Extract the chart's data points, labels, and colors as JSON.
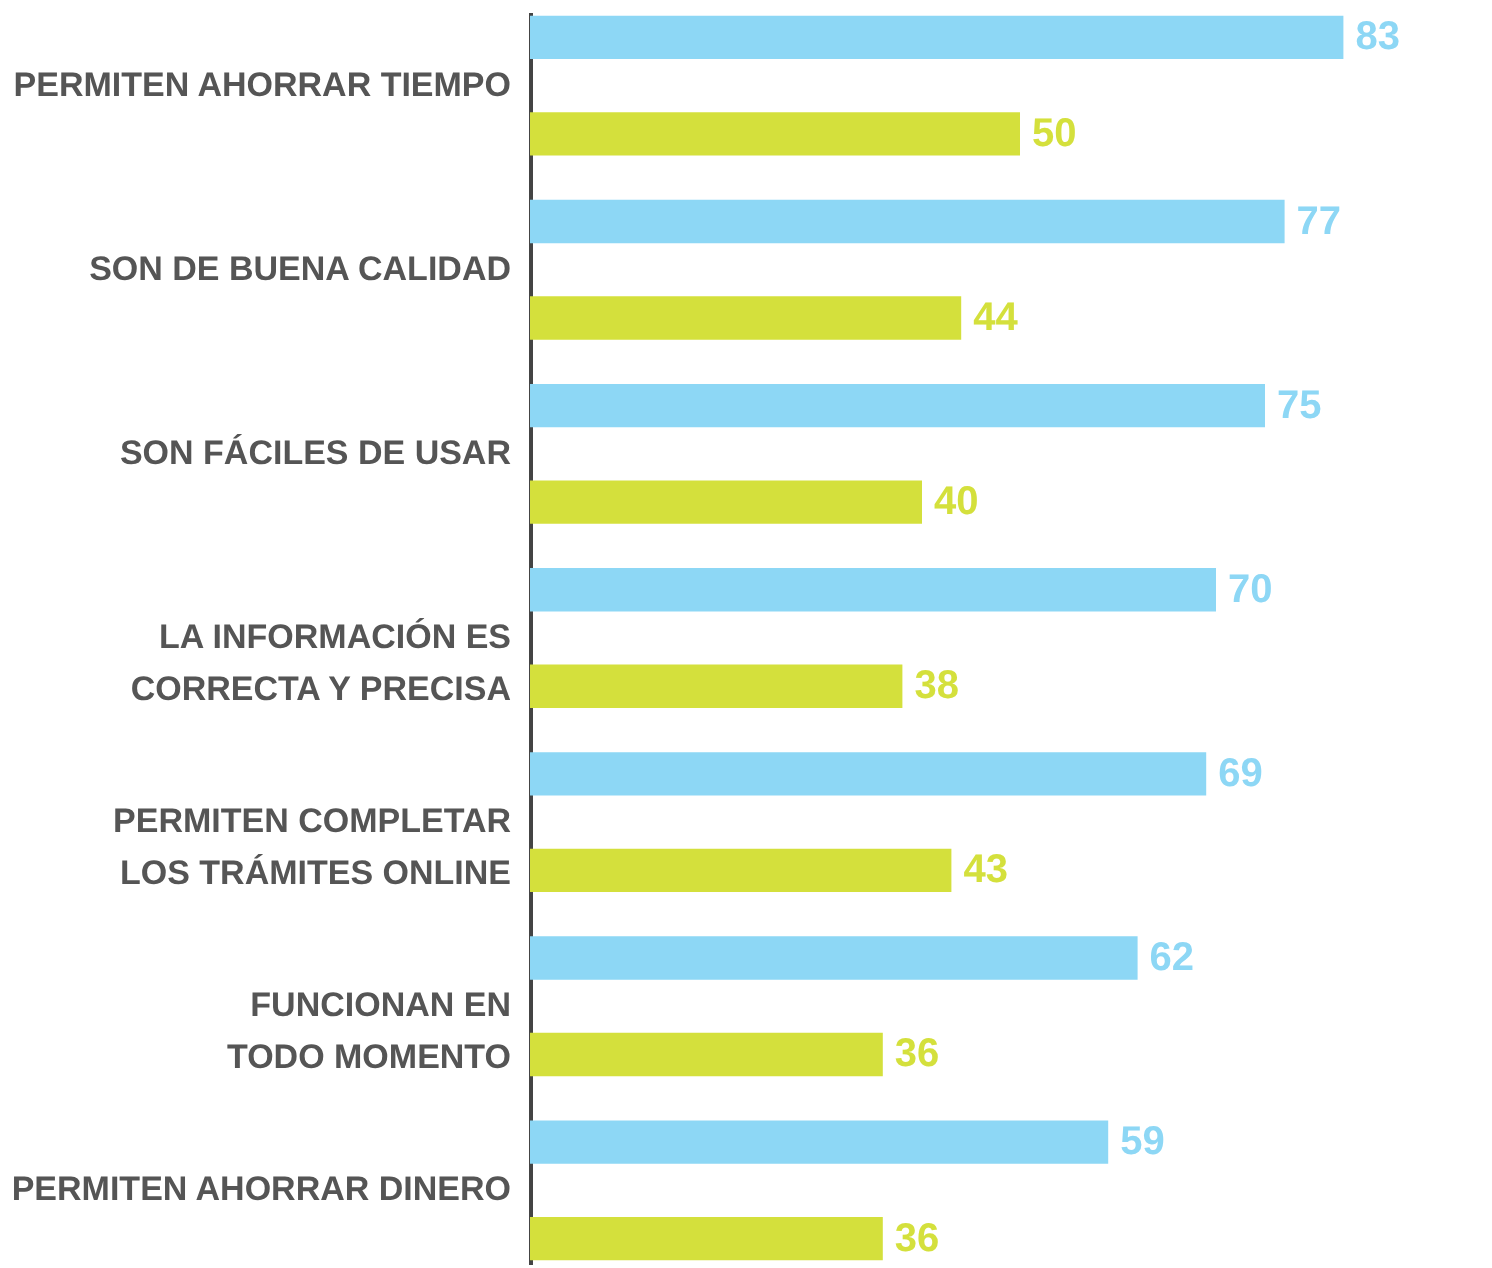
{
  "chart_data": {
    "type": "bar",
    "orientation": "horizontal",
    "categories": [
      "PERMITEN AHORRAR TIEMPO",
      "SON DE BUENA CALIDAD",
      "SON FÁCILES DE USAR",
      "LA INFORMACIÓN ES\nCORRECTA Y PRECISA",
      "PERMITEN COMPLETAR\nLOS TRÁMITES ONLINE",
      "FUNCIONAN EN\nTODO MOMENTO",
      "PERMITEN AHORRAR DINERO"
    ],
    "series": [
      {
        "color": "#8dd7f5",
        "values": [
          83,
          77,
          75,
          70,
          69,
          62,
          59
        ]
      },
      {
        "color": "#d4e03c",
        "values": [
          50,
          44,
          40,
          38,
          43,
          36,
          36
        ]
      }
    ],
    "data_labels": true,
    "grid": false,
    "legend": false
  }
}
